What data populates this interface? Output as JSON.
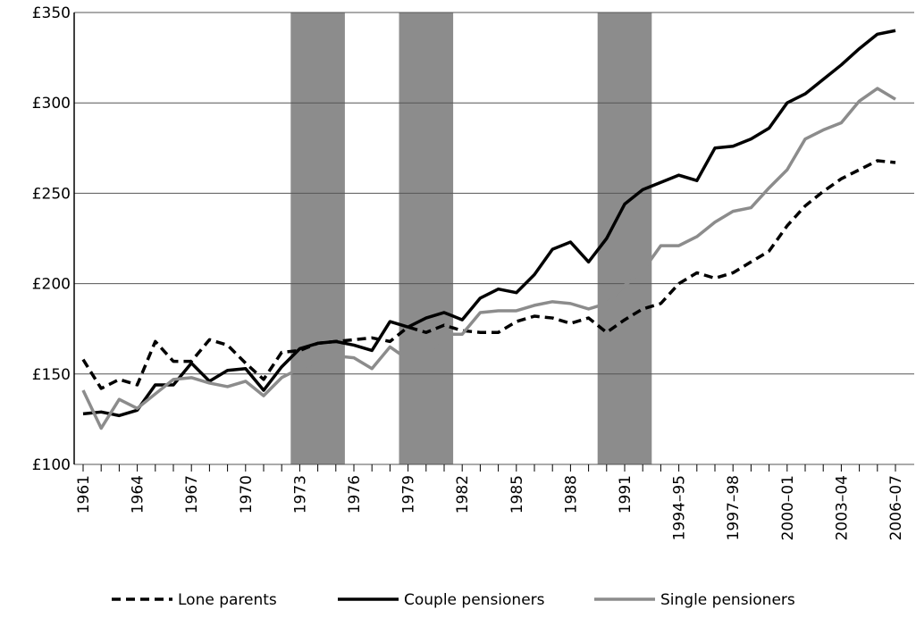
{
  "chart_data": {
    "type": "line",
    "categories": [
      "1961",
      null,
      null,
      "1964",
      null,
      null,
      "1967",
      null,
      null,
      "1970",
      null,
      null,
      "1973",
      null,
      null,
      "1976",
      null,
      null,
      "1979",
      null,
      null,
      "1982",
      null,
      null,
      "1985",
      null,
      null,
      "1988",
      null,
      null,
      "1991",
      null,
      null,
      "1994–95",
      null,
      null,
      "1997–98",
      null,
      null,
      "2000–01",
      null,
      null,
      "2003–04",
      null,
      null,
      "2006–07"
    ],
    "series": [
      {
        "name": "Lone parents",
        "color": "#000000",
        "dash": true,
        "values": [
          158,
          142,
          147,
          144,
          168,
          157,
          157,
          169,
          166,
          156,
          147,
          162,
          163,
          167,
          168,
          169,
          170,
          168,
          176,
          173,
          177,
          174,
          173,
          173,
          179,
          182,
          181,
          178,
          181,
          173,
          180,
          186,
          189,
          200,
          206,
          203,
          206,
          212,
          218,
          232,
          243,
          251,
          258,
          263,
          268,
          267
        ]
      },
      {
        "name": "Couple pensioners",
        "color": "#000000",
        "dash": false,
        "values": [
          128,
          129,
          127,
          130,
          144,
          144,
          156,
          146,
          152,
          153,
          141,
          154,
          164,
          167,
          168,
          166,
          163,
          179,
          176,
          181,
          184,
          180,
          192,
          197,
          195,
          205,
          219,
          223,
          212,
          225,
          244,
          252,
          256,
          260,
          257,
          275,
          276,
          280,
          286,
          300,
          305,
          313,
          321,
          330,
          338,
          340
        ]
      },
      {
        "name": "Single pensioners",
        "color": "#8c8c8c",
        "dash": false,
        "values": [
          141,
          120,
          136,
          131,
          139,
          147,
          148,
          145,
          143,
          146,
          138,
          148,
          153,
          157,
          160,
          159,
          153,
          165,
          158,
          159,
          172,
          172,
          184,
          185,
          185,
          188,
          190,
          189,
          186,
          189,
          199,
          207,
          221,
          221,
          226,
          234,
          240,
          242,
          253,
          263,
          280,
          285,
          289,
          301,
          308,
          302
        ]
      }
    ],
    "shaded_ranges": [
      [
        11.5,
        14.5
      ],
      [
        17.5,
        20.5
      ],
      [
        28.5,
        31.5
      ]
    ],
    "shade_color": "#8c8c8c",
    "ylim": [
      100,
      350
    ],
    "yticks": [
      {
        "value": 100,
        "label": "£100"
      },
      {
        "value": 150,
        "label": "£150"
      },
      {
        "value": 200,
        "label": "£200"
      },
      {
        "value": 250,
        "label": "£250"
      },
      {
        "value": 300,
        "label": "£300"
      },
      {
        "value": 350,
        "label": "£350"
      }
    ],
    "grid": true,
    "legend": "bottom"
  }
}
